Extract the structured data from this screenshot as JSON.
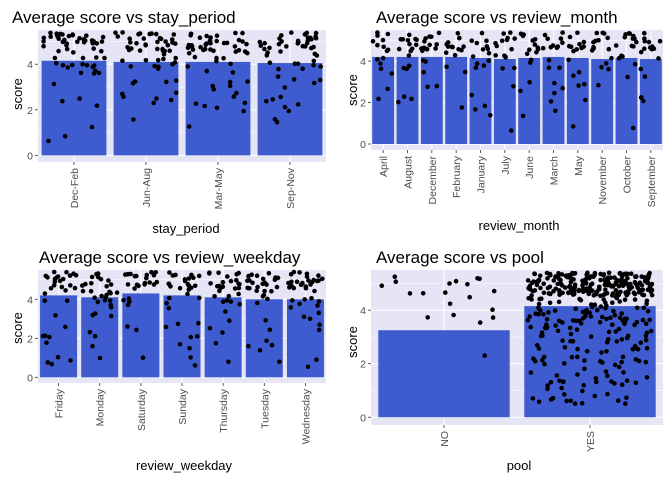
{
  "colors": {
    "panel_bg": "#e5e5f5",
    "bar": "#3e5cd0",
    "point": "#000000",
    "grid": "#ffffff",
    "text": "#000000",
    "tick_text": "#4d4d4d"
  },
  "chart_data": [
    {
      "type": "bar",
      "title": "Average  score  vs  stay_period",
      "xlabel": "stay_period",
      "ylabel": "score",
      "ylim": [
        0,
        5.5
      ],
      "yticks": [
        0,
        2,
        4
      ],
      "categories": [
        "Dec-Feb",
        "Jun-Aug",
        "Mar-May",
        "Sep-Nov"
      ],
      "values": [
        4.15,
        4.1,
        4.1,
        4.05
      ],
      "points_per_category": [
        60,
        55,
        55,
        55
      ],
      "grid": true,
      "legend": "none"
    },
    {
      "type": "bar",
      "title": "Average  score  vs  review_month",
      "xlabel": "review_month",
      "ylabel": "score",
      "ylim": [
        0,
        5.5
      ],
      "yticks": [
        0,
        2,
        4
      ],
      "categories": [
        "April",
        "August",
        "December",
        "February",
        "January",
        "July",
        "June",
        "March",
        "May",
        "November",
        "October",
        "September"
      ],
      "values": [
        4.2,
        4.2,
        4.2,
        4.2,
        4.15,
        4.1,
        4.15,
        4.2,
        4.15,
        4.1,
        4.15,
        4.1
      ],
      "points_per_category": [
        16,
        18,
        18,
        16,
        17,
        17,
        16,
        18,
        17,
        16,
        17,
        17
      ],
      "grid": true,
      "legend": "none"
    },
    {
      "type": "bar",
      "title": "Average  score  vs  review_weekday",
      "xlabel": "review_weekday",
      "ylabel": "score",
      "ylim": [
        0,
        5.5
      ],
      "yticks": [
        0,
        2,
        4
      ],
      "categories": [
        "Friday",
        "Monday",
        "Saturday",
        "Sunday",
        "Thursday",
        "Tuesday",
        "Wednesday"
      ],
      "values": [
        4.2,
        4.1,
        4.3,
        4.2,
        4.1,
        4.0,
        4.0
      ],
      "points_per_category": [
        32,
        32,
        26,
        32,
        32,
        32,
        38
      ],
      "grid": true,
      "legend": "none"
    },
    {
      "type": "bar",
      "title": "Average  score  vs  pool",
      "xlabel": "pool",
      "ylabel": "score",
      "ylim": [
        0,
        5.5
      ],
      "yticks": [
        0,
        2,
        4
      ],
      "categories": [
        "NO",
        "YES"
      ],
      "values": [
        3.25,
        4.15
      ],
      "points_per_category": [
        20,
        380
      ],
      "grid": true,
      "legend": "none"
    }
  ]
}
